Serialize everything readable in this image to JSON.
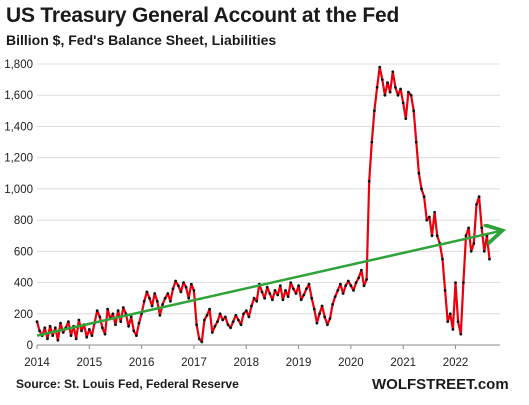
{
  "title": "US Treasury General Account at the Fed",
  "subtitle": "Billion $, Fed's Balance Sheet, Liabilities",
  "source": "Source: St. Louis Fed, Federal Reserve",
  "brand": "WOLFSTREET.com",
  "colors": {
    "series": "#e8000d",
    "markers": "#111111",
    "trend": "#2fa33a",
    "grid": "#dcdcdc"
  },
  "chart_data": {
    "type": "line",
    "title": "US Treasury General Account at the Fed",
    "subtitle": "Billion $, Fed's Balance Sheet, Liabilities",
    "ylim": [
      0,
      1800
    ],
    "y_ticks": [
      0,
      200,
      400,
      600,
      800,
      1000,
      1200,
      1400,
      1600,
      1800
    ],
    "y_tick_labels": [
      "0",
      "200",
      "400",
      "600",
      "800",
      "1,000",
      "1,200",
      "1,400",
      "1,600",
      "1,800"
    ],
    "xlim": [
      2014,
      2022.85
    ],
    "x_ticks": [
      2014,
      2015,
      2016,
      2017,
      2018,
      2019,
      2020,
      2021,
      2022
    ],
    "x_tick_labels": [
      "2014",
      "2015",
      "2016",
      "2017",
      "2018",
      "2019",
      "2020",
      "2021",
      "2022"
    ],
    "grid": "horizontal",
    "series": [
      {
        "style": "red line with black markers",
        "x": [
          2014.0,
          2014.05,
          2014.1,
          2014.15,
          2014.2,
          2014.25,
          2014.3,
          2014.35,
          2014.4,
          2014.45,
          2014.5,
          2014.55,
          2014.6,
          2014.65,
          2014.7,
          2014.75,
          2014.8,
          2014.85,
          2014.9,
          2014.95,
          2015.0,
          2015.05,
          2015.1,
          2015.15,
          2015.2,
          2015.25,
          2015.3,
          2015.35,
          2015.4,
          2015.45,
          2015.5,
          2015.55,
          2015.6,
          2015.65,
          2015.7,
          2015.75,
          2015.8,
          2015.85,
          2015.9,
          2015.95,
          2016.0,
          2016.05,
          2016.1,
          2016.15,
          2016.2,
          2016.25,
          2016.3,
          2016.35,
          2016.4,
          2016.45,
          2016.5,
          2016.55,
          2016.6,
          2016.65,
          2016.7,
          2016.75,
          2016.8,
          2016.85,
          2016.9,
          2016.95,
          2017.0,
          2017.05,
          2017.1,
          2017.15,
          2017.2,
          2017.25,
          2017.3,
          2017.35,
          2017.4,
          2017.45,
          2017.5,
          2017.55,
          2017.6,
          2017.65,
          2017.7,
          2017.75,
          2017.8,
          2017.85,
          2017.9,
          2017.95,
          2018.0,
          2018.05,
          2018.1,
          2018.15,
          2018.2,
          2018.25,
          2018.3,
          2018.35,
          2018.4,
          2018.45,
          2018.5,
          2018.55,
          2018.6,
          2018.65,
          2018.7,
          2018.75,
          2018.8,
          2018.85,
          2018.9,
          2018.95,
          2019.0,
          2019.05,
          2019.1,
          2019.15,
          2019.2,
          2019.25,
          2019.3,
          2019.35,
          2019.4,
          2019.45,
          2019.5,
          2019.55,
          2019.6,
          2019.65,
          2019.7,
          2019.75,
          2019.8,
          2019.85,
          2019.9,
          2019.95,
          2020.0,
          2020.05,
          2020.1,
          2020.15,
          2020.2,
          2020.25,
          2020.3,
          2020.35,
          2020.4,
          2020.45,
          2020.5,
          2020.55,
          2020.6,
          2020.65,
          2020.7,
          2020.75,
          2020.8,
          2020.85,
          2020.9,
          2020.95,
          2021.0,
          2021.05,
          2021.1,
          2021.15,
          2021.2,
          2021.25,
          2021.3,
          2021.35,
          2021.4,
          2021.45,
          2021.5,
          2021.55,
          2021.6,
          2021.65,
          2021.7,
          2021.75,
          2021.8,
          2021.85,
          2021.9,
          2021.95,
          2022.0,
          2022.05,
          2022.1,
          2022.15,
          2022.2,
          2022.25,
          2022.3,
          2022.35,
          2022.4,
          2022.45,
          2022.5,
          2022.55,
          2022.6,
          2022.65
        ],
        "values": [
          150,
          90,
          60,
          110,
          40,
          120,
          60,
          110,
          30,
          140,
          80,
          110,
          150,
          60,
          120,
          40,
          160,
          90,
          130,
          50,
          100,
          60,
          140,
          220,
          180,
          110,
          70,
          230,
          170,
          200,
          130,
          220,
          150,
          240,
          200,
          120,
          180,
          90,
          60,
          140,
          200,
          280,
          340,
          300,
          250,
          330,
          280,
          190,
          260,
          300,
          330,
          280,
          360,
          410,
          380,
          340,
          400,
          370,
          300,
          390,
          350,
          130,
          40,
          20,
          160,
          190,
          230,
          80,
          120,
          150,
          200,
          160,
          180,
          130,
          110,
          150,
          190,
          160,
          130,
          200,
          220,
          180,
          250,
          300,
          280,
          390,
          340,
          300,
          370,
          330,
          290,
          350,
          320,
          380,
          290,
          350,
          310,
          400,
          360,
          330,
          380,
          290,
          320,
          360,
          390,
          300,
          230,
          140,
          200,
          250,
          180,
          130,
          170,
          260,
          310,
          350,
          390,
          330,
          380,
          410,
          380,
          350,
          400,
          430,
          480,
          380,
          420,
          1050,
          1300,
          1500,
          1650,
          1780,
          1700,
          1600,
          1680,
          1620,
          1750,
          1650,
          1600,
          1640,
          1550,
          1450,
          1620,
          1600,
          1500,
          1300,
          1100,
          1000,
          950,
          800,
          820,
          700,
          850,
          700,
          650,
          550,
          350,
          150,
          200,
          100,
          400,
          150,
          70,
          400,
          700,
          750,
          600,
          650,
          900,
          950,
          750,
          600,
          700,
          550
        ]
      },
      {
        "style": "green trend arrow",
        "x": [
          2014.0,
          2022.85
        ],
        "values": [
          60,
          730
        ]
      }
    ]
  }
}
